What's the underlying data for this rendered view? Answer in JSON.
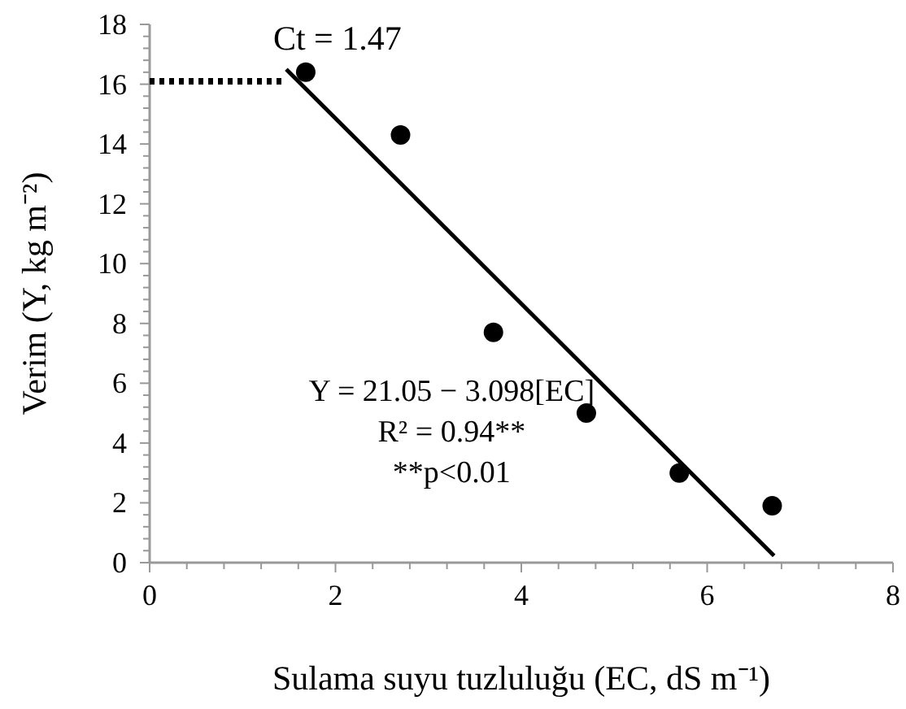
{
  "chart_data": {
    "type": "scatter",
    "xlabel": "Sulama suyu tuzluluğu (EC, dS m⁻¹)",
    "ylabel": "Verim (Y, kg m⁻²)",
    "xlim": [
      0,
      8
    ],
    "ylim": [
      0,
      18
    ],
    "marker": "circle",
    "grid": false,
    "xticks": [
      0,
      {
        "value": 0.4,
        "label": null
      },
      {
        "value": 0.8,
        "label": null
      },
      {
        "value": 1.2,
        "label": null
      },
      {
        "value": 1.6,
        "label": null
      },
      2,
      {
        "value": 2.4,
        "label": null
      },
      {
        "value": 2.8,
        "label": null
      },
      {
        "value": 3.2,
        "label": null
      },
      {
        "value": 3.6,
        "label": null
      },
      4,
      {
        "value": 4.4,
        "label": null
      },
      {
        "value": 4.8,
        "label": null
      },
      {
        "value": 5.2,
        "label": null
      },
      {
        "value": 5.6,
        "label": null
      },
      6,
      {
        "value": 6.4,
        "label": null
      },
      {
        "value": 6.8,
        "label": null
      },
      {
        "value": 7.2,
        "label": null
      },
      {
        "value": 7.6,
        "label": null
      },
      8
    ],
    "yticks": [
      0,
      {
        "value": 0.4,
        "label": null
      },
      {
        "value": 0.8,
        "label": null
      },
      {
        "value": 1.2,
        "label": null
      },
      {
        "value": 1.6,
        "label": null
      },
      2,
      {
        "value": 2.4,
        "label": null
      },
      {
        "value": 2.8,
        "label": null
      },
      {
        "value": 3.2,
        "label": null
      },
      {
        "value": 3.6,
        "label": null
      },
      4,
      {
        "value": 4.4,
        "label": null
      },
      {
        "value": 4.8,
        "label": null
      },
      {
        "value": 5.2,
        "label": null
      },
      {
        "value": 5.6,
        "label": null
      },
      6,
      {
        "value": 6.4,
        "label": null
      },
      {
        "value": 6.8,
        "label": null
      },
      {
        "value": 7.2,
        "label": null
      },
      {
        "value": 7.6,
        "label": null
      },
      8,
      {
        "value": 8.4,
        "label": null
      },
      {
        "value": 8.8,
        "label": null
      },
      {
        "value": 9.2,
        "label": null
      },
      {
        "value": 9.6,
        "label": null
      },
      10,
      {
        "value": 10.4,
        "label": null
      },
      {
        "value": 10.8,
        "label": null
      },
      {
        "value": 11.2,
        "label": null
      },
      {
        "value": 11.6,
        "label": null
      },
      12,
      {
        "value": 12.4,
        "label": null
      },
      {
        "value": 12.8,
        "label": null
      },
      {
        "value": 13.2,
        "label": null
      },
      {
        "value": 13.6,
        "label": null
      },
      14,
      {
        "value": 14.4,
        "label": null
      },
      {
        "value": 14.8,
        "label": null
      },
      {
        "value": 15.2,
        "label": null
      },
      {
        "value": 15.6,
        "label": null
      },
      16,
      {
        "value": 16.4,
        "label": null
      },
      {
        "value": 16.8,
        "label": null
      },
      {
        "value": 17.2,
        "label": null
      },
      {
        "value": 17.6,
        "label": null
      },
      18
    ],
    "series": [
      {
        "color": "#000000",
        "x": [
          1.68,
          2.7,
          3.7,
          4.7,
          5.7,
          6.7
        ],
        "values": [
          16.4,
          14.3,
          7.7,
          5.0,
          3.0,
          1.9
        ]
      },
      {
        "type": "line",
        "color": "#000000",
        "line_style": "solid",
        "marker": "none",
        "x": [
          1.47,
          6.72
        ],
        "values": [
          16.5,
          0.23
        ]
      },
      {
        "type": "line",
        "color": "#000000",
        "line_style": "dotted",
        "marker": "none",
        "x": [
          0,
          1.47
        ],
        "values": [
          16.1,
          16.1
        ]
      }
    ],
    "annotations": [
      {
        "text": "Ct = 1.47",
        "x": 1.47,
        "y": 16.5
      },
      "Y = 21.05 − 3.098[EC]",
      "R² = 0.94**",
      "**p<0.01"
    ]
  }
}
